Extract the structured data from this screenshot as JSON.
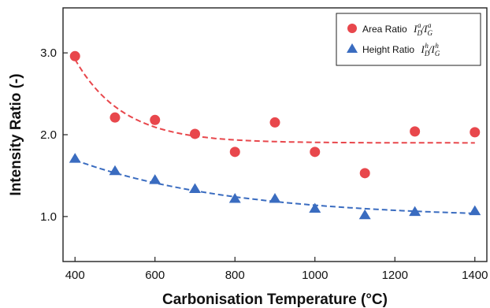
{
  "chart_data": {
    "type": "scatter",
    "title": "",
    "xlabel": "Carbonisation Temperature (°C)",
    "ylabel": "Intensity Ratio (-)",
    "xlim": [
      370,
      1430
    ],
    "ylim": [
      0.45,
      3.55
    ],
    "x_ticks": [
      400,
      600,
      800,
      1000,
      1200,
      1400
    ],
    "y_ticks": [
      "1.0",
      "2.0",
      "3.0"
    ],
    "grid": false,
    "legend_position": "top-right",
    "series": [
      {
        "name": "Area Ratio",
        "legend_math": {
          "base_a": "I",
          "sub_a": "D",
          "sup_a": "a",
          "slash": "/",
          "base_b": "I",
          "sub_b": "G",
          "sup_b": "a"
        },
        "marker": "circle",
        "color": "#e8474c",
        "x": [
          400,
          500,
          600,
          700,
          800,
          900,
          1000,
          1125,
          1250,
          1400
        ],
        "y": [
          2.96,
          2.21,
          2.18,
          2.01,
          1.79,
          2.15,
          1.79,
          1.53,
          2.04,
          2.03
        ],
        "fit": {
          "type": "exponential",
          "x": [
            400,
            1400
          ],
          "y0": 2.92,
          "asymptote": 1.9,
          "decay": 120
        }
      },
      {
        "name": "Height Ratio",
        "legend_math": {
          "base_a": "I",
          "sub_a": "D",
          "sup_a": "h",
          "slash": "/",
          "base_b": "I",
          "sub_b": "G",
          "sup_b": "h"
        },
        "marker": "triangle",
        "color": "#3a6cc0",
        "x": [
          400,
          500,
          600,
          700,
          800,
          900,
          1000,
          1125,
          1250,
          1400
        ],
        "y": [
          1.71,
          1.56,
          1.45,
          1.34,
          1.22,
          1.22,
          1.1,
          1.02,
          1.06,
          1.07
        ],
        "fit": {
          "type": "exponential",
          "x": [
            400,
            1400
          ],
          "y0": 1.69,
          "asymptote": 0.98,
          "decay": 400
        }
      }
    ]
  }
}
